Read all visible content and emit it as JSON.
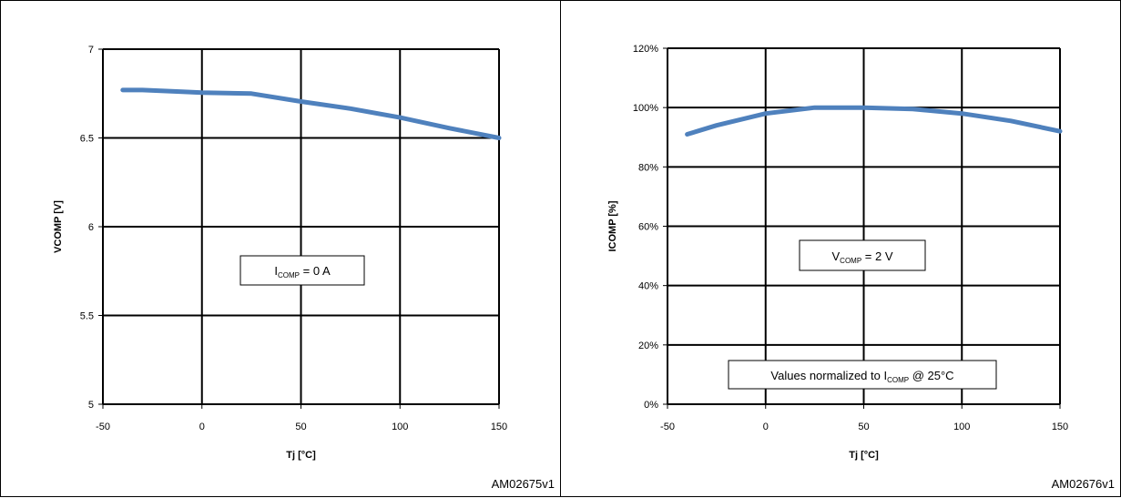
{
  "chart_data": [
    {
      "type": "line",
      "xlabel": "Tj [°C]",
      "ylabel": "VCOMP [V]",
      "xlim": [
        -50,
        150
      ],
      "ylim": [
        5,
        7
      ],
      "xticks": [
        -50,
        0,
        50,
        100,
        150
      ],
      "xtick_labels": [
        "-50",
        "0",
        "50",
        "100",
        "150"
      ],
      "yticks": [
        5,
        5.5,
        6,
        6.5,
        7
      ],
      "ytick_labels": [
        "5",
        "5.5",
        "6",
        "6.5",
        "7"
      ],
      "grid": true,
      "series": [
        {
          "color": "#4f81bd",
          "x": [
            -40,
            -30,
            -10,
            0,
            25,
            50,
            75,
            100,
            125,
            150
          ],
          "y": [
            6.77,
            6.77,
            6.76,
            6.755,
            6.75,
            6.705,
            6.665,
            6.615,
            6.555,
            6.5
          ]
        }
      ],
      "annotations": [
        {
          "main": "I",
          "sub": "COMP",
          "rest": " = 0 A"
        }
      ],
      "figure_id": "AM02675v1"
    },
    {
      "type": "line",
      "xlabel": "Tj [°C]",
      "ylabel": "ICOMP [%]",
      "xlim": [
        -50,
        150
      ],
      "ylim": [
        0,
        120
      ],
      "xticks": [
        -50,
        0,
        50,
        100,
        150
      ],
      "xtick_labels": [
        "-50",
        "0",
        "50",
        "100",
        "150"
      ],
      "yticks": [
        0,
        20,
        40,
        60,
        80,
        100,
        120
      ],
      "ytick_labels": [
        "0%",
        "20%",
        "40%",
        "60%",
        "80%",
        "100%",
        "120%"
      ],
      "grid": true,
      "series": [
        {
          "color": "#4f81bd",
          "x": [
            -40,
            -25,
            0,
            25,
            50,
            75,
            100,
            125,
            150
          ],
          "y": [
            91,
            94,
            98,
            100,
            100,
            99.5,
            98,
            95.5,
            92
          ]
        }
      ],
      "annotations": [
        {
          "main": "V",
          "sub": "COMP",
          "rest": " = 2 V"
        },
        {
          "main": "Values normalized  to I",
          "sub": "COMP",
          "rest": " @ 25°C"
        }
      ],
      "figure_id": "AM02676v1"
    }
  ]
}
